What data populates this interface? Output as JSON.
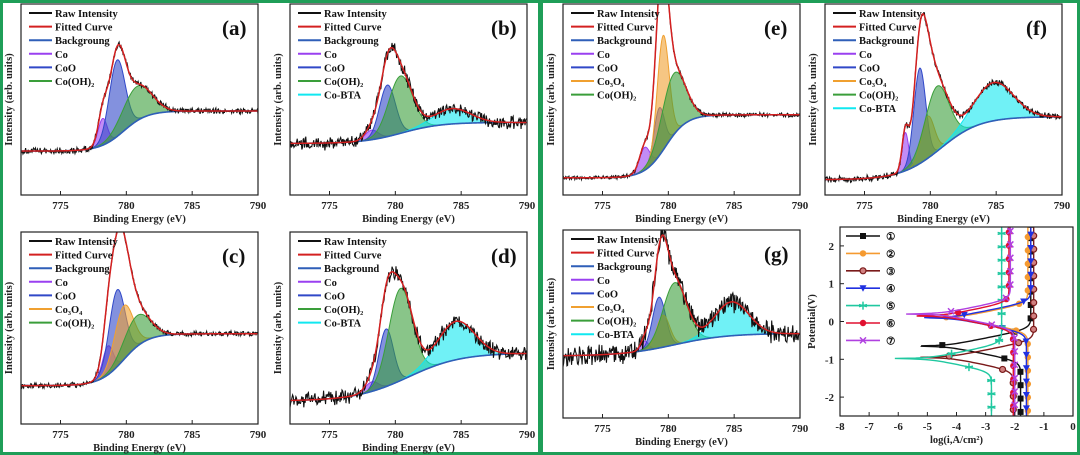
{
  "colors": {
    "Raw Intensity": "#111111",
    "Fitted Curve": "#d42020",
    "Background": "#2f5fb8",
    "Co": "#9a40f0",
    "CoO": "#3048c8",
    "Co3O4": "#f0a030",
    "Co(OH)2": "#3a9e3a",
    "Co-BTA": "#10e8f0",
    "frame": "#1f9e58"
  },
  "chart_data": [
    {
      "id": "a",
      "type": "area",
      "panel_label": "(a)",
      "xlabel": "Binding Energy (eV)",
      "ylabel": "Intensity (arb. units)",
      "xlim": [
        772,
        790
      ],
      "ylim": [
        0,
        1
      ],
      "xticks": [
        775,
        780,
        785,
        790
      ],
      "noise": 0.015,
      "legend": [
        "Raw Intensity",
        "Fitted Curve",
        "Backgroung",
        "Co",
        "CoO",
        "Co(OH)₂"
      ],
      "legend_keys": [
        "Raw Intensity",
        "Fitted Curve",
        "Background",
        "Co",
        "CoO",
        "Co(OH)2"
      ],
      "background": {
        "low": 0.23,
        "high": 0.44,
        "center": 779.8,
        "width": 0.9
      },
      "components": [
        {
          "key": "Co",
          "center": 778.2,
          "height": 0.14,
          "sigma": 0.35
        },
        {
          "key": "CoO",
          "center": 779.3,
          "height": 0.4,
          "sigma": 0.6
        },
        {
          "key": "Co(OH)2",
          "center": 780.8,
          "height": 0.18,
          "sigma": 1.1
        }
      ]
    },
    {
      "id": "b",
      "type": "area",
      "panel_label": "(b)",
      "xlabel": "Binding Energy (eV)",
      "ylabel": "Intensity (arb. units)",
      "xlim": [
        772,
        790
      ],
      "ylim": [
        0,
        1
      ],
      "xticks": [
        775,
        780,
        785,
        790
      ],
      "noise": 0.03,
      "legend": [
        "Raw Intensity",
        "Fitted Curve",
        "Backgroung",
        "Co",
        "CoO",
        "Co(OH)₂",
        "Co-BTA"
      ],
      "legend_keys": [
        "Raw Intensity",
        "Fitted Curve",
        "Background",
        "Co",
        "CoO",
        "Co(OH)2",
        "Co-BTA"
      ],
      "background": {
        "low": 0.27,
        "high": 0.38,
        "center": 780.5,
        "width": 1.5
      },
      "components": [
        {
          "key": "Co",
          "center": 778.2,
          "height": 0.05,
          "sigma": 0.5
        },
        {
          "key": "CoO",
          "center": 779.4,
          "height": 0.27,
          "sigma": 0.6
        },
        {
          "key": "Co(OH)2",
          "center": 780.4,
          "height": 0.3,
          "sigma": 0.9
        },
        {
          "key": "Co-BTA",
          "center": 784.3,
          "height": 0.08,
          "sigma": 1.4
        }
      ]
    },
    {
      "id": "c",
      "type": "area",
      "panel_label": "(c)",
      "xlabel": "Binding Energy (eV)",
      "ylabel": "Intensity (arb. units)",
      "xlim": [
        772,
        790
      ],
      "ylim": [
        0,
        1
      ],
      "xticks": [
        775,
        780,
        785,
        790
      ],
      "noise": 0.012,
      "legend": [
        "Raw Intensity",
        "Fitted Curve",
        "Backgroung",
        "Co",
        "CoO",
        "Co₃O₄",
        "Co(OH)₂"
      ],
      "legend_keys": [
        "Raw Intensity",
        "Fitted Curve",
        "Background",
        "Co",
        "CoO",
        "Co3O4",
        "Co(OH)2"
      ],
      "background": {
        "low": 0.2,
        "high": 0.47,
        "center": 779.8,
        "width": 0.9
      },
      "components": [
        {
          "key": "Co",
          "center": 778.6,
          "height": 0.15,
          "sigma": 0.4
        },
        {
          "key": "CoO",
          "center": 779.3,
          "height": 0.4,
          "sigma": 0.6
        },
        {
          "key": "Co3O4",
          "center": 779.8,
          "height": 0.28,
          "sigma": 0.7
        },
        {
          "key": "Co(OH)2",
          "center": 780.8,
          "height": 0.16,
          "sigma": 1.0
        }
      ]
    },
    {
      "id": "d",
      "type": "area",
      "panel_label": "(d)",
      "xlabel": "Binding Energy (eV)",
      "ylabel": "Intensity (arb. units)",
      "xlim": [
        772,
        790
      ],
      "ylim": [
        0,
        1
      ],
      "xticks": [
        775,
        780,
        785,
        790
      ],
      "noise": 0.035,
      "legend": [
        "Raw Intensity",
        "Fitted Curve",
        "Background",
        "Co",
        "CoO",
        "Co(OH)₂",
        "Co-BTA"
      ],
      "legend_keys": [
        "Raw Intensity",
        "Fitted Curve",
        "Background",
        "Co",
        "CoO",
        "Co(OH)2",
        "Co-BTA"
      ],
      "background": {
        "low": 0.12,
        "high": 0.37,
        "center": 781,
        "width": 2
      },
      "components": [
        {
          "key": "Co",
          "center": 778.2,
          "height": 0.05,
          "sigma": 0.5
        },
        {
          "key": "CoO",
          "center": 779.3,
          "height": 0.3,
          "sigma": 0.55
        },
        {
          "key": "Co(OH)2",
          "center": 780.4,
          "height": 0.48,
          "sigma": 0.9
        },
        {
          "key": "Co-BTA",
          "center": 784.6,
          "height": 0.2,
          "sigma": 1.4
        }
      ]
    },
    {
      "id": "e",
      "type": "area",
      "panel_label": "(e)",
      "xlabel": "Binding Energy (eV)",
      "ylabel": "Intensity (arb. units)",
      "xlim": [
        772,
        790
      ],
      "ylim": [
        0,
        1
      ],
      "xticks": [
        775,
        780,
        785,
        790
      ],
      "noise": 0.01,
      "legend": [
        "Raw Intensity",
        "Fitted Curve",
        "Background",
        "Co",
        "CoO",
        "Co₃O₄",
        "Co(OH)₂"
      ],
      "legend_keys": [
        "Raw Intensity",
        "Fitted Curve",
        "Background",
        "Co",
        "CoO",
        "Co3O4",
        "Co(OH)2"
      ],
      "background": {
        "low": 0.09,
        "high": 0.42,
        "center": 779.8,
        "width": 0.8
      },
      "components": [
        {
          "key": "Co",
          "center": 778.2,
          "height": 0.12,
          "sigma": 0.4
        },
        {
          "key": "CoO",
          "center": 779.3,
          "height": 0.25,
          "sigma": 0.4
        },
        {
          "key": "Co3O4",
          "center": 779.6,
          "height": 0.6,
          "sigma": 0.45
        },
        {
          "key": "Co(OH)2",
          "center": 780.4,
          "height": 0.32,
          "sigma": 0.9
        }
      ]
    },
    {
      "id": "f",
      "type": "area",
      "panel_label": "(f)",
      "xlabel": "Binding Energy (eV)",
      "ylabel": "Intensity (arb. units)",
      "xlim": [
        772,
        790
      ],
      "ylim": [
        0,
        1
      ],
      "xticks": [
        775,
        780,
        785,
        790
      ],
      "noise": 0.015,
      "legend": [
        "Raw Intensity",
        "Fitted Curve",
        "Background",
        "Co",
        "CoO",
        "Co₃O₄",
        "Co(OH)₂",
        "Co-BTA"
      ],
      "legend_keys": [
        "Raw Intensity",
        "Fitted Curve",
        "Background",
        "Co",
        "CoO",
        "Co3O4",
        "Co(OH)2",
        "Co-BTA"
      ],
      "background": {
        "low": 0.08,
        "high": 0.41,
        "center": 780.8,
        "width": 1.5
      },
      "components": [
        {
          "key": "Co",
          "center": 778.1,
          "height": 0.2,
          "sigma": 0.25
        },
        {
          "key": "CoO",
          "center": 779.2,
          "height": 0.5,
          "sigma": 0.45
        },
        {
          "key": "Co3O4",
          "center": 779.8,
          "height": 0.22,
          "sigma": 0.5
        },
        {
          "key": "Co(OH)2",
          "center": 780.5,
          "height": 0.34,
          "sigma": 0.9
        },
        {
          "key": "Co-BTA",
          "center": 784.8,
          "height": 0.2,
          "sigma": 1.5
        }
      ]
    },
    {
      "id": "g",
      "type": "area",
      "panel_label": "(g)",
      "xlabel": "Binding Energy (eV)",
      "ylabel": "Intensity (arb. units)",
      "xlim": [
        772,
        790
      ],
      "ylim": [
        0,
        1
      ],
      "xticks": [
        775,
        780,
        785,
        790
      ],
      "noise": 0.05,
      "legend": [
        "Raw Intensity",
        "Fitted Curve",
        "Backgroung",
        "Co",
        "CoO",
        "Co₃O₄",
        "Co(OH)₂",
        "Co-BTA"
      ],
      "legend_keys": [
        "Raw Intensity",
        "Fitted Curve",
        "Background",
        "Co",
        "CoO",
        "Co3O4",
        "Co(OH)2",
        "Co-BTA"
      ],
      "background": {
        "low": 0.33,
        "high": 0.45,
        "center": 780.5,
        "width": 2
      },
      "components": [
        {
          "key": "Co",
          "center": 778.2,
          "height": 0.05,
          "sigma": 0.3
        },
        {
          "key": "CoO",
          "center": 779.3,
          "height": 0.27,
          "sigma": 0.5
        },
        {
          "key": "Co3O4",
          "center": 779.6,
          "height": 0.17,
          "sigma": 0.5
        },
        {
          "key": "Co(OH)2",
          "center": 780.5,
          "height": 0.33,
          "sigma": 0.9
        },
        {
          "key": "Co-BTA",
          "center": 784.8,
          "height": 0.18,
          "sigma": 1.3
        }
      ]
    },
    {
      "id": "h",
      "type": "line",
      "xlabel": "log(i,A/cm²)",
      "ylabel": "Potential(V)",
      "xlim": [
        -8,
        0
      ],
      "ylim": [
        -2.5,
        2.5
      ],
      "xticks": [
        -8,
        -7,
        -6,
        -5,
        -4,
        -3,
        -2,
        -1,
        0
      ],
      "yticks": [
        -2,
        -1,
        0,
        1,
        2
      ],
      "series": [
        {
          "name": "①",
          "color": "#111111",
          "marker": "square",
          "ecorr": -0.65,
          "log_tip": -5.7,
          "log_icorr": -4.4,
          "log_ilim_anodic": -1.45,
          "log_ilim_cathodic": -1.8
        },
        {
          "name": "②",
          "color": "#f59a30",
          "marker": "circle",
          "ecorr": 0.1,
          "log_tip": -5.5,
          "log_icorr": -4.0,
          "log_ilim_anodic": -1.55,
          "log_ilim_cathodic": -1.55
        },
        {
          "name": "③",
          "color": "#7a1a1a",
          "marker": "ring",
          "ecorr": -0.95,
          "log_tip": -5.5,
          "log_icorr": -4.3,
          "log_ilim_anodic": -1.35,
          "log_ilim_cathodic": -2.05
        },
        {
          "name": "④",
          "color": "#2030e0",
          "marker": "triangle-down",
          "ecorr": 0.1,
          "log_tip": -6.2,
          "log_icorr": -4.2,
          "log_ilim_anodic": -1.45,
          "log_ilim_cathodic": -1.6
        },
        {
          "name": "⑤",
          "color": "#20c8a0",
          "marker": "star",
          "ecorr": -0.98,
          "log_tip": -6.5,
          "log_icorr": -5.0,
          "log_ilim_anodic": -2.45,
          "log_ilim_cathodic": -2.8
        },
        {
          "name": "⑥",
          "color": "#e01030",
          "marker": "circle",
          "ecorr": 0.15,
          "log_tip": -5.9,
          "log_icorr": -4.5,
          "log_ilim_anodic": -2.2,
          "log_ilim_cathodic": -2.05
        },
        {
          "name": "⑦",
          "color": "#b040e0",
          "marker": "cross",
          "ecorr": 0.2,
          "log_tip": -6.1,
          "log_icorr": -4.6,
          "log_ilim_anodic": -2.15,
          "log_ilim_cathodic": -2.0
        }
      ]
    }
  ]
}
